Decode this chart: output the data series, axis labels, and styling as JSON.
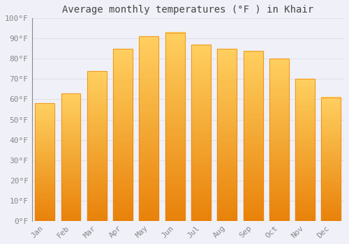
{
  "title": "Average monthly temperatures (°F ) in Khair",
  "months": [
    "Jan",
    "Feb",
    "Mar",
    "Apr",
    "May",
    "Jun",
    "Jul",
    "Aug",
    "Sep",
    "Oct",
    "Nov",
    "Dec"
  ],
  "values": [
    58,
    63,
    74,
    85,
    91,
    93,
    87,
    85,
    84,
    80,
    70,
    61
  ],
  "bar_color_top": "#FFB300",
  "bar_color_bottom": "#FF8C00",
  "bar_color_fill": "#FFA500",
  "background_color": "#F0F0F8",
  "plot_bg_color": "#F0F0F8",
  "grid_color": "#E0E0E8",
  "ylim": [
    0,
    100
  ],
  "yticks": [
    0,
    10,
    20,
    30,
    40,
    50,
    60,
    70,
    80,
    90,
    100
  ],
  "ytick_labels": [
    "0°F",
    "10°F",
    "20°F",
    "30°F",
    "40°F",
    "50°F",
    "60°F",
    "70°F",
    "80°F",
    "90°F",
    "100°F"
  ],
  "title_fontsize": 10,
  "tick_fontsize": 8,
  "tick_color": "#888888",
  "title_color": "#444444",
  "font_family": "monospace",
  "bar_width": 0.75
}
